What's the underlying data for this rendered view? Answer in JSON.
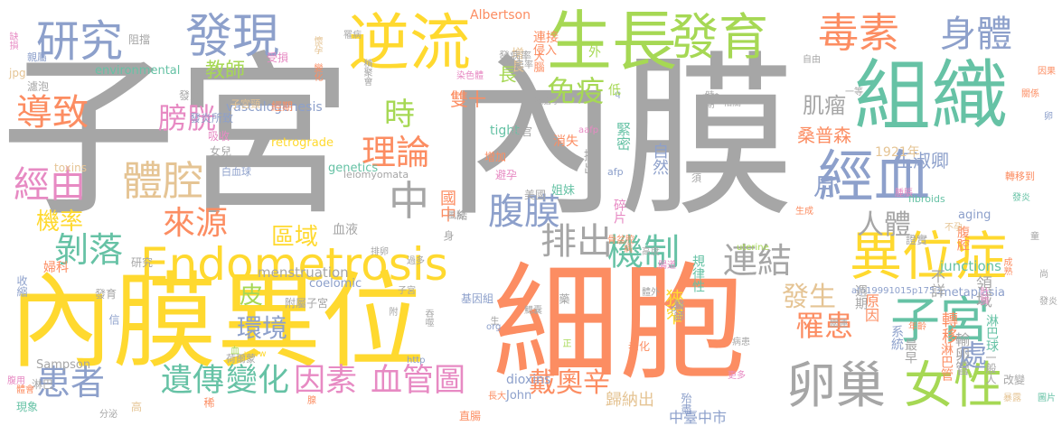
{
  "palette": {
    "gray": "#a6a6a6",
    "yellow": "#ffd92f",
    "orange": "#fc8d62",
    "green": "#66c2a5",
    "lime": "#a6d854",
    "blue": "#8da0cb",
    "tan": "#e5c494",
    "pink": "#e78ac3"
  },
  "words": [
    {
      "text": "子宮",
      "c": "gray"
    },
    {
      "text": "內膜",
      "c": "gray"
    },
    {
      "text": "內膜異位",
      "c": "yellow"
    },
    {
      "text": "細胞",
      "c": "orange"
    },
    {
      "text": "組織",
      "c": "green"
    },
    {
      "text": "Endometrosis",
      "c": "yellow"
    },
    {
      "text": "逆流",
      "c": "yellow"
    },
    {
      "text": "生長",
      "c": "lime"
    },
    {
      "text": "發育",
      "c": "lime"
    },
    {
      "text": "毒素",
      "c": "orange"
    },
    {
      "text": "身體",
      "c": "blue"
    },
    {
      "text": "研究",
      "c": "blue"
    },
    {
      "text": "發現",
      "c": "blue"
    },
    {
      "text": "經血",
      "c": "blue"
    },
    {
      "text": "異位症",
      "c": "yellow"
    },
    {
      "text": "子宮",
      "c": "green"
    },
    {
      "text": "女性",
      "c": "lime"
    },
    {
      "text": "卵巢",
      "c": "gray"
    },
    {
      "text": "體腔",
      "c": "tan"
    },
    {
      "text": "導致",
      "c": "orange"
    },
    {
      "text": "經由",
      "c": "pink"
    },
    {
      "text": "剝落",
      "c": "green"
    },
    {
      "text": "患者",
      "c": "blue"
    },
    {
      "text": "遺傳",
      "c": "green"
    },
    {
      "text": "變化",
      "c": "green"
    },
    {
      "text": "因素",
      "c": "pink"
    },
    {
      "text": "血管圖",
      "c": "pink"
    },
    {
      "text": "排出",
      "c": "gray"
    },
    {
      "text": "機制",
      "c": "green"
    },
    {
      "text": "連結",
      "c": "gray"
    },
    {
      "text": "腹膜",
      "c": "blue"
    },
    {
      "text": "理論",
      "c": "orange"
    },
    {
      "text": "膀胱",
      "c": "pink"
    },
    {
      "text": "來源",
      "c": "orange"
    },
    {
      "text": "免疫",
      "c": "lime"
    },
    {
      "text": "時",
      "c": "lime"
    },
    {
      "text": "中",
      "c": "gray"
    },
    {
      "text": "罹患",
      "c": "orange"
    },
    {
      "text": "處",
      "c": "blue"
    },
    {
      "text": "戴奧辛",
      "c": "orange"
    },
    {
      "text": "機率",
      "c": "yellow"
    },
    {
      "text": "環境",
      "c": "blue"
    },
    {
      "text": "皮",
      "c": "lime"
    },
    {
      "text": "區域",
      "c": "yellow"
    },
    {
      "text": "發生",
      "c": "tan"
    },
    {
      "text": "人體",
      "c": "gray"
    },
    {
      "text": "月",
      "c": "blue"
    },
    {
      "text": "教師",
      "c": "lime"
    },
    {
      "text": "肌瘤",
      "c": "gray"
    },
    {
      "text": "雙十",
      "c": "orange"
    },
    {
      "text": "桑普森",
      "c": "orange"
    },
    {
      "text": "王淑卿",
      "c": "blue"
    },
    {
      "text": "1921年",
      "c": "tan"
    },
    {
      "text": "Albertson",
      "c": "orange"
    },
    {
      "text": "environmental",
      "c": "green"
    },
    {
      "text": "vasculogenesis",
      "c": "blue"
    },
    {
      "text": "retrograde",
      "c": "yellow"
    },
    {
      "text": "menstruation",
      "c": "gray"
    },
    {
      "text": "Sampson",
      "c": "gray"
    },
    {
      "text": "tight",
      "c": "green"
    },
    {
      "text": "dioxins",
      "c": "blue"
    },
    {
      "text": "junctions",
      "c": "green"
    },
    {
      "text": "metaplasia",
      "c": "blue"
    },
    {
      "text": "genetics",
      "c": "green"
    },
    {
      "text": "coelomic",
      "c": "blue"
    },
    {
      "text": "John",
      "c": "blue"
    },
    {
      "text": "leiomyomata",
      "c": "gray"
    },
    {
      "text": "toxins",
      "c": "tan"
    },
    {
      "text": "fibroids",
      "c": "green"
    },
    {
      "text": "aging",
      "c": "blue"
    },
    {
      "text": "afp",
      "c": "blue"
    },
    {
      "text": "afp19991015p1753",
      "c": "blue"
    },
    {
      "text": "uterine",
      "c": "lime"
    },
    {
      "text": "http",
      "c": "blue"
    },
    {
      "text": "www",
      "c": "yellow"
    },
    {
      "text": "org",
      "c": "blue"
    },
    {
      "text": "jpg",
      "c": "tan"
    },
    {
      "text": "aafp",
      "c": "pink"
    },
    {
      "text": "q",
      "c": "blue"
    },
    {
      "text": "p",
      "c": "blue"
    },
    {
      "text": "中臺中市",
      "c": "blue"
    },
    {
      "text": "歸納出",
      "c": "tan"
    },
    {
      "text": "狹窄",
      "c": "yellow"
    },
    {
      "text": "國中",
      "c": "orange"
    },
    {
      "text": "自然",
      "c": "blue"
    },
    {
      "text": "緊密",
      "c": "green"
    },
    {
      "text": "原因",
      "c": "orange"
    },
    {
      "text": "不詳",
      "c": "gray"
    },
    {
      "text": "領域",
      "c": "gray"
    },
    {
      "text": "轉移",
      "c": "orange"
    },
    {
      "text": "淋巴球",
      "c": "green"
    },
    {
      "text": "輸卵管",
      "c": "gray"
    },
    {
      "text": "淋巴管",
      "c": "orange"
    },
    {
      "text": "系統",
      "c": "blue"
    },
    {
      "text": "最早",
      "c": "gray"
    },
    {
      "text": "一般人",
      "c": "gray"
    },
    {
      "text": "週期",
      "c": "gray"
    },
    {
      "text": "腹腔",
      "c": "orange"
    },
    {
      "text": "血液",
      "c": "gray"
    },
    {
      "text": "證實",
      "c": "gray"
    },
    {
      "text": "規律性",
      "c": "green"
    },
    {
      "text": "碎片",
      "c": "pink"
    },
    {
      "text": "提出",
      "c": "gray"
    },
    {
      "text": "消失",
      "c": "orange"
    },
    {
      "text": "姐妹",
      "c": "green"
    },
    {
      "text": "美國",
      "c": "gray"
    },
    {
      "text": "器官",
      "c": "gray"
    },
    {
      "text": "增加",
      "c": "orange"
    },
    {
      "text": "避孕",
      "c": "pink"
    },
    {
      "text": "經期",
      "c": "orange"
    },
    {
      "text": "子宮頸",
      "c": "tan"
    },
    {
      "text": "發炎",
      "c": "gray"
    },
    {
      "text": "發炎所致",
      "c": "blue"
    },
    {
      "text": "吸收",
      "c": "pink"
    },
    {
      "text": "女兒",
      "c": "gray"
    },
    {
      "text": "白血球",
      "c": "blue"
    },
    {
      "text": "附屬子宮",
      "c": "gray"
    },
    {
      "text": "基因組",
      "c": "blue"
    },
    {
      "text": "醫師",
      "c": "gray"
    },
    {
      "text": "研究",
      "c": "gray"
    },
    {
      "text": "婦科",
      "c": "orange"
    },
    {
      "text": "收縮",
      "c": "blue"
    },
    {
      "text": "發育",
      "c": "gray"
    },
    {
      "text": "淋巴",
      "c": "gray"
    },
    {
      "text": "荷爾蒙",
      "c": "gray"
    },
    {
      "text": "現象",
      "c": "green"
    },
    {
      "text": "高",
      "c": "tan"
    },
    {
      "text": "分泌",
      "c": "gray"
    },
    {
      "text": "直腸",
      "c": "orange"
    },
    {
      "text": "殆盡",
      "c": "blue"
    },
    {
      "text": "老化",
      "c": "orange"
    },
    {
      "text": "更多",
      "c": "pink"
    },
    {
      "text": "改變",
      "c": "gray"
    },
    {
      "text": "暴露",
      "c": "tan"
    },
    {
      "text": "圖片",
      "c": "green"
    },
    {
      "text": "肚臍",
      "c": "pink"
    },
    {
      "text": "成熟",
      "c": "orange"
    },
    {
      "text": "年齡",
      "c": "orange"
    },
    {
      "text": "轉移到",
      "c": "orange"
    },
    {
      "text": "發炎",
      "c": "green"
    },
    {
      "text": "關係",
      "c": "orange"
    },
    {
      "text": "因果",
      "c": "orange"
    },
    {
      "text": "自由",
      "c": "gray"
    },
    {
      "text": "相關",
      "c": "gray"
    },
    {
      "text": "自體",
      "c": "gray"
    },
    {
      "text": "時期",
      "c": "gray"
    },
    {
      "text": "一等",
      "c": "gray"
    },
    {
      "text": "連接",
      "c": "orange"
    },
    {
      "text": "侵入",
      "c": "orange"
    },
    {
      "text": "增長",
      "c": "tan"
    },
    {
      "text": "發病率",
      "c": "gray"
    },
    {
      "text": "罹患率",
      "c": "gray"
    },
    {
      "text": "大腦",
      "c": "orange"
    },
    {
      "text": "染色體",
      "c": "pink"
    },
    {
      "text": "罹病",
      "c": "gray"
    },
    {
      "text": "懷孕",
      "c": "tan"
    },
    {
      "text": "變化",
      "c": "orange"
    },
    {
      "text": "阻擋",
      "c": "gray"
    },
    {
      "text": "受損",
      "c": "pink"
    },
    {
      "text": "親屬",
      "c": "blue"
    },
    {
      "text": "濾泡",
      "c": "gray"
    },
    {
      "text": "缺損",
      "c": "pink"
    },
    {
      "text": "積聚會",
      "c": "gray"
    },
    {
      "text": "胚胎學",
      "c": "gray"
    },
    {
      "text": "骨盆腔",
      "c": "orange"
    },
    {
      "text": "風險",
      "c": "gray"
    },
    {
      "text": "過多",
      "c": "gray"
    },
    {
      "text": "排卵",
      "c": "gray"
    },
    {
      "text": "子宮",
      "c": "gray"
    },
    {
      "text": "鰓囊",
      "c": "gray"
    },
    {
      "text": "病",
      "c": "orange"
    },
    {
      "text": "腸道",
      "c": "pink"
    },
    {
      "text": "病患",
      "c": "gray"
    },
    {
      "text": "關連",
      "c": "gray"
    },
    {
      "text": "腫脹",
      "c": "pink"
    },
    {
      "text": "童",
      "c": "gray"
    },
    {
      "text": "發炎",
      "c": "gray"
    },
    {
      "text": "尚",
      "c": "gray"
    },
    {
      "text": "卵",
      "c": "blue"
    },
    {
      "text": "須",
      "c": "gray"
    },
    {
      "text": "血",
      "c": "lime"
    },
    {
      "text": "長",
      "c": "lime"
    },
    {
      "text": "外",
      "c": "lime"
    },
    {
      "text": "低",
      "c": "lime"
    },
    {
      "text": "藥",
      "c": "gray"
    },
    {
      "text": "結",
      "c": "gray"
    },
    {
      "text": "附",
      "c": "gray"
    },
    {
      "text": "身",
      "c": "gray"
    },
    {
      "text": "生",
      "c": "gray"
    },
    {
      "text": "正",
      "c": "lime"
    },
    {
      "text": "信",
      "c": "blue"
    },
    {
      "text": "腺",
      "c": "orange"
    },
    {
      "text": "稀",
      "c": "orange"
    },
    {
      "text": "吞噬",
      "c": "gray"
    },
    {
      "text": "長大",
      "c": "orange"
    },
    {
      "text": "高度",
      "c": "gray"
    },
    {
      "text": "體外",
      "c": "gray"
    },
    {
      "text": "生成",
      "c": "orange"
    },
    {
      "text": "不孕",
      "c": "tan"
    },
    {
      "text": "體會",
      "c": "orange"
    },
    {
      "text": "腹用",
      "c": "pink"
    }
  ]
}
